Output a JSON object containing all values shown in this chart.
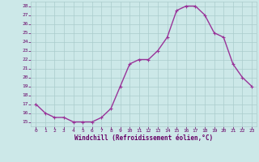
{
  "x": [
    0,
    1,
    2,
    3,
    4,
    5,
    6,
    7,
    8,
    9,
    10,
    11,
    12,
    13,
    14,
    15,
    16,
    17,
    18,
    19,
    20,
    21,
    22,
    23
  ],
  "y": [
    17,
    16,
    15.5,
    15.5,
    15,
    15,
    15,
    15.5,
    16.5,
    19,
    21.5,
    22,
    22,
    23,
    24.5,
    27.5,
    28,
    28,
    27,
    25,
    24.5,
    21.5,
    20,
    19
  ],
  "line_color": "#993399",
  "marker_color": "#993399",
  "bg_color": "#cce8e8",
  "grid_color": "#aacccc",
  "xlabel": "Windchill (Refroidissement éolien,°C)",
  "xlabel_color": "#660066",
  "ytick_color": "#660066",
  "xtick_color": "#660066",
  "ylim": [
    14.5,
    28.5
  ],
  "xlim": [
    -0.5,
    23.5
  ],
  "yticks": [
    15,
    16,
    17,
    18,
    19,
    20,
    21,
    22,
    23,
    24,
    25,
    26,
    27,
    28
  ],
  "xticks": [
    0,
    1,
    2,
    3,
    4,
    5,
    6,
    7,
    8,
    9,
    10,
    11,
    12,
    13,
    14,
    15,
    16,
    17,
    18,
    19,
    20,
    21,
    22,
    23
  ],
  "line_width": 1.0,
  "marker_size": 2.5
}
